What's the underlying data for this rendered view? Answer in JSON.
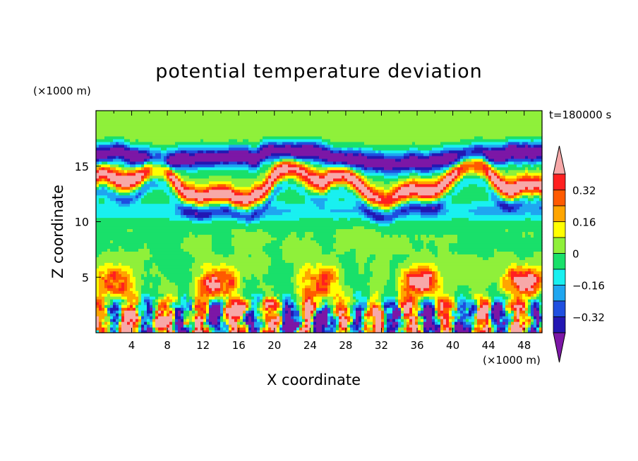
{
  "chart_data": {
    "type": "heatmap",
    "title": "potential temperature deviation",
    "xlabel": "X coordinate",
    "ylabel": "Z coordinate",
    "x_unit": "(×1000 m)",
    "y_unit": "(×1000 m)",
    "time_label": "t=180000 s",
    "xlim": [
      0,
      50
    ],
    "ylim": [
      0,
      20
    ],
    "x_ticks": [
      4,
      8,
      12,
      16,
      20,
      24,
      28,
      32,
      36,
      40,
      44,
      48
    ],
    "y_ticks": [
      5,
      10,
      15
    ],
    "colorbar": {
      "levels": [
        -0.4,
        -0.32,
        -0.24,
        -0.16,
        -0.08,
        0,
        0.08,
        0.16,
        0.24,
        0.32,
        0.4
      ],
      "tick_labels": [
        "0.32",
        "0.16",
        "0",
        "−0.16",
        "−0.32"
      ],
      "colors": [
        "#7c17a6",
        "#2217b3",
        "#1f4fe0",
        "#1fa6f0",
        "#19f0f0",
        "#19e06a",
        "#8ff03a",
        "#ffff00",
        "#ffa500",
        "#ff5a00",
        "#ff2020",
        "#f7a8a8"
      ]
    },
    "features": [
      {
        "kind": "warm_layer",
        "z_km": [
          11,
          15
        ],
        "x_km": [
          0,
          50
        ],
        "peak": 0.4
      },
      {
        "kind": "cold_layer",
        "z_km": [
          12.5,
          16.5
        ],
        "x_km": [
          0,
          50
        ],
        "peak": -0.4
      },
      {
        "kind": "cool_band",
        "z_km": [
          10,
          12
        ],
        "x_km": [
          0,
          50
        ],
        "peak": -0.12
      },
      {
        "kind": "turbulent_boundary_layer",
        "z_km": [
          0,
          4
        ],
        "x_km": [
          0,
          50
        ],
        "range": [
          -0.4,
          0.4
        ]
      }
    ]
  }
}
